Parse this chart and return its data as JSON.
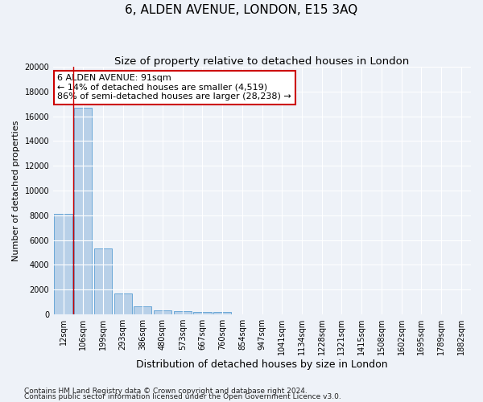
{
  "title": "6, ALDEN AVENUE, LONDON, E15 3AQ",
  "subtitle": "Size of property relative to detached houses in London",
  "xlabel": "Distribution of detached houses by size in London",
  "ylabel": "Number of detached properties",
  "categories": [
    "12sqm",
    "106sqm",
    "199sqm",
    "293sqm",
    "386sqm",
    "480sqm",
    "573sqm",
    "667sqm",
    "760sqm",
    "854sqm",
    "947sqm",
    "1041sqm",
    "1134sqm",
    "1228sqm",
    "1321sqm",
    "1415sqm",
    "1508sqm",
    "1602sqm",
    "1695sqm",
    "1789sqm",
    "1882sqm"
  ],
  "values": [
    8100,
    16700,
    5300,
    1700,
    650,
    350,
    270,
    210,
    180,
    0,
    0,
    0,
    0,
    0,
    0,
    0,
    0,
    0,
    0,
    0,
    0
  ],
  "bar_color": "#b8d0e8",
  "bar_edge_color": "#5a9fd4",
  "highlight_line_color": "#cc0000",
  "annotation_text": "6 ALDEN AVENUE: 91sqm\n← 14% of detached houses are smaller (4,519)\n86% of semi-detached houses are larger (28,238) →",
  "annotation_box_color": "#ffffff",
  "annotation_box_edge_color": "#cc0000",
  "ylim": [
    0,
    20000
  ],
  "yticks": [
    0,
    2000,
    4000,
    6000,
    8000,
    10000,
    12000,
    14000,
    16000,
    18000,
    20000
  ],
  "background_color": "#eef2f8",
  "grid_color": "#ffffff",
  "footnote1": "Contains HM Land Registry data © Crown copyright and database right 2024.",
  "footnote2": "Contains public sector information licensed under the Open Government Licence v3.0.",
  "title_fontsize": 11,
  "subtitle_fontsize": 9.5,
  "xlabel_fontsize": 9,
  "ylabel_fontsize": 8,
  "tick_fontsize": 7,
  "annotation_fontsize": 8,
  "footnote_fontsize": 6.5
}
